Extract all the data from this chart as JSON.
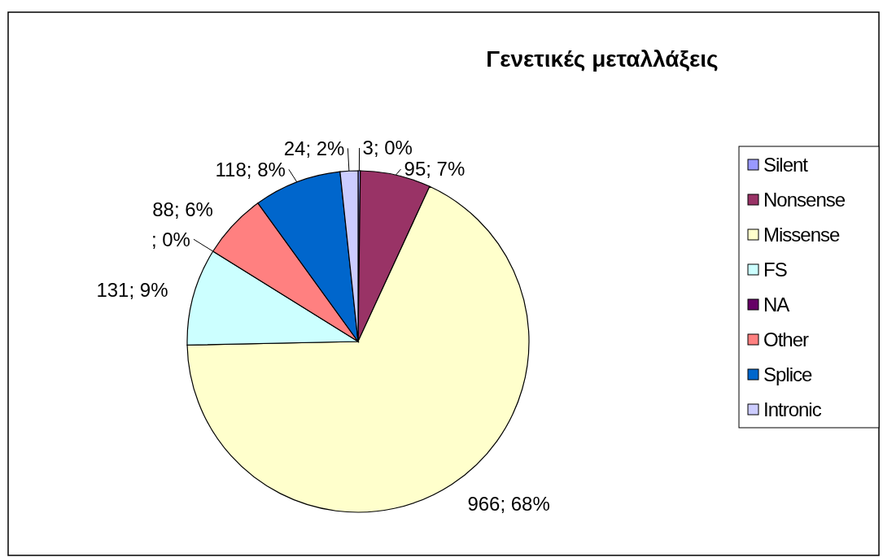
{
  "chart_data": {
    "type": "pie",
    "title": "Γενετικές μεταλλάξεις",
    "categories": [
      "Silent",
      "Nonsense",
      "Missense",
      "FS",
      "NA",
      "Other",
      "Splice",
      "Intronic"
    ],
    "values": [
      3,
      95,
      966,
      131,
      null,
      88,
      118,
      24
    ],
    "value_labels": [
      "3; 0%",
      "95; 7%",
      "966; 68%",
      "131; 9%",
      "; 0%",
      "88; 6%",
      "118; 8%",
      "24; 2%"
    ],
    "colors": [
      "#9999ff",
      "#993366",
      "#ffffcc",
      "#ccffff",
      "#660066",
      "#ff8080",
      "#0066cc",
      "#ccccff"
    ],
    "legend": "right"
  }
}
